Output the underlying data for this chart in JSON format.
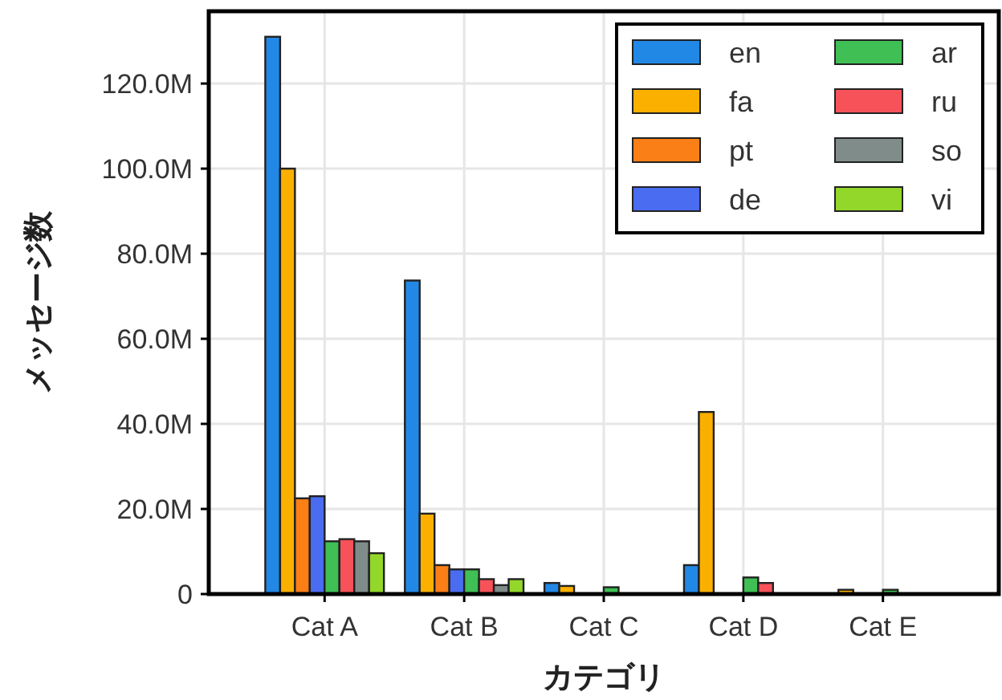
{
  "chart_data": {
    "type": "bar",
    "xlabel": "カテゴリ",
    "ylabel": "メッセージ数",
    "categories": [
      "Cat A",
      "Cat B",
      "Cat C",
      "Cat D",
      "Cat E"
    ],
    "series": [
      {
        "name": "en",
        "color": "#2288e6",
        "values": [
          131000000,
          73700000,
          2600000,
          6800000,
          0
        ]
      },
      {
        "name": "fa",
        "color": "#fbb000",
        "values": [
          100000000,
          18900000,
          1900000,
          42800000,
          1000000
        ]
      },
      {
        "name": "pt",
        "color": "#fa7f16",
        "values": [
          22500000,
          6800000,
          100000,
          100000,
          0
        ]
      },
      {
        "name": "de",
        "color": "#4a6cf0",
        "values": [
          23000000,
          5800000,
          null,
          100000,
          0
        ]
      },
      {
        "name": "ar",
        "color": "#3fbf54",
        "values": [
          12400000,
          5800000,
          1600000,
          3900000,
          1000000
        ]
      },
      {
        "name": "ru",
        "color": "#f7525a",
        "values": [
          12900000,
          3500000,
          null,
          2600000,
          0
        ]
      },
      {
        "name": "so",
        "color": "#7f8c8a",
        "values": [
          12400000,
          2100000,
          0,
          null,
          0
        ]
      },
      {
        "name": "vi",
        "color": "#93d72a",
        "values": [
          9600000,
          3500000,
          null,
          0,
          0
        ]
      }
    ],
    "ylim": [
      0,
      137000000
    ],
    "yticks": [
      0,
      {
        "value": 20000000,
        "label": "20.0M"
      },
      {
        "value": 40000000,
        "label": "40.0M"
      },
      {
        "value": 60000000,
        "label": "60.0M"
      },
      {
        "value": 80000000,
        "label": "80.0M"
      },
      {
        "value": 100000000,
        "label": "100.0M"
      },
      {
        "value": 120000000,
        "label": "120.0M"
      }
    ],
    "grid": true,
    "legend": "top right"
  }
}
